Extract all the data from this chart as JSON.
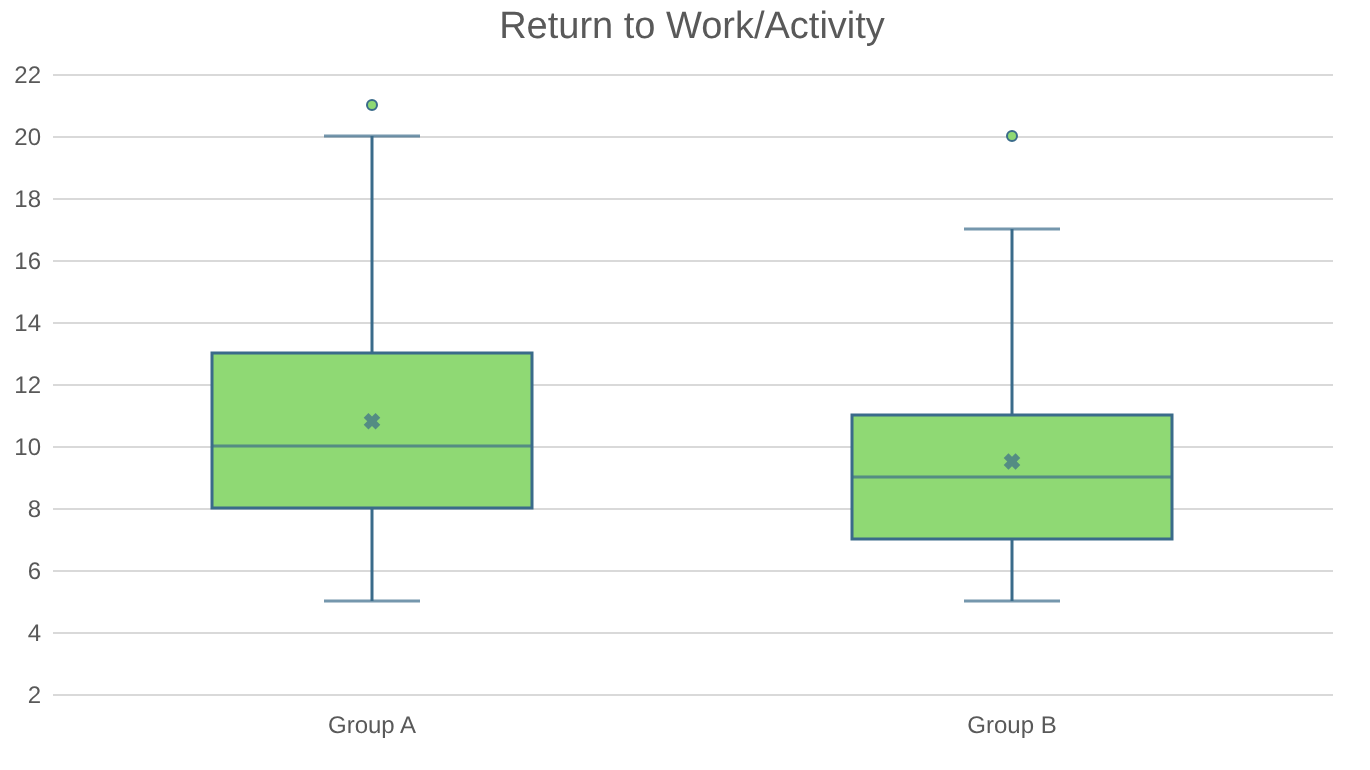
{
  "chart_data": {
    "type": "box",
    "title": "Return to Work/Activity",
    "categories": [
      "Group A",
      "Group B"
    ],
    "series": [
      {
        "color": "#8fd974",
        "boxes": [
          {
            "low": 5,
            "q1": 8,
            "median": 10,
            "q3": 13,
            "high": 20,
            "mean": 10.8,
            "outliers": [
              21
            ]
          },
          {
            "low": 5,
            "q1": 7,
            "median": 9,
            "q3": 11,
            "high": 17,
            "mean": 9.5,
            "outliers": [
              20
            ]
          }
        ]
      }
    ],
    "ylim": [
      2,
      22
    ],
    "yticks": [
      2,
      4,
      6,
      8,
      10,
      12,
      14,
      16,
      18,
      20,
      22
    ],
    "grid": "y"
  }
}
